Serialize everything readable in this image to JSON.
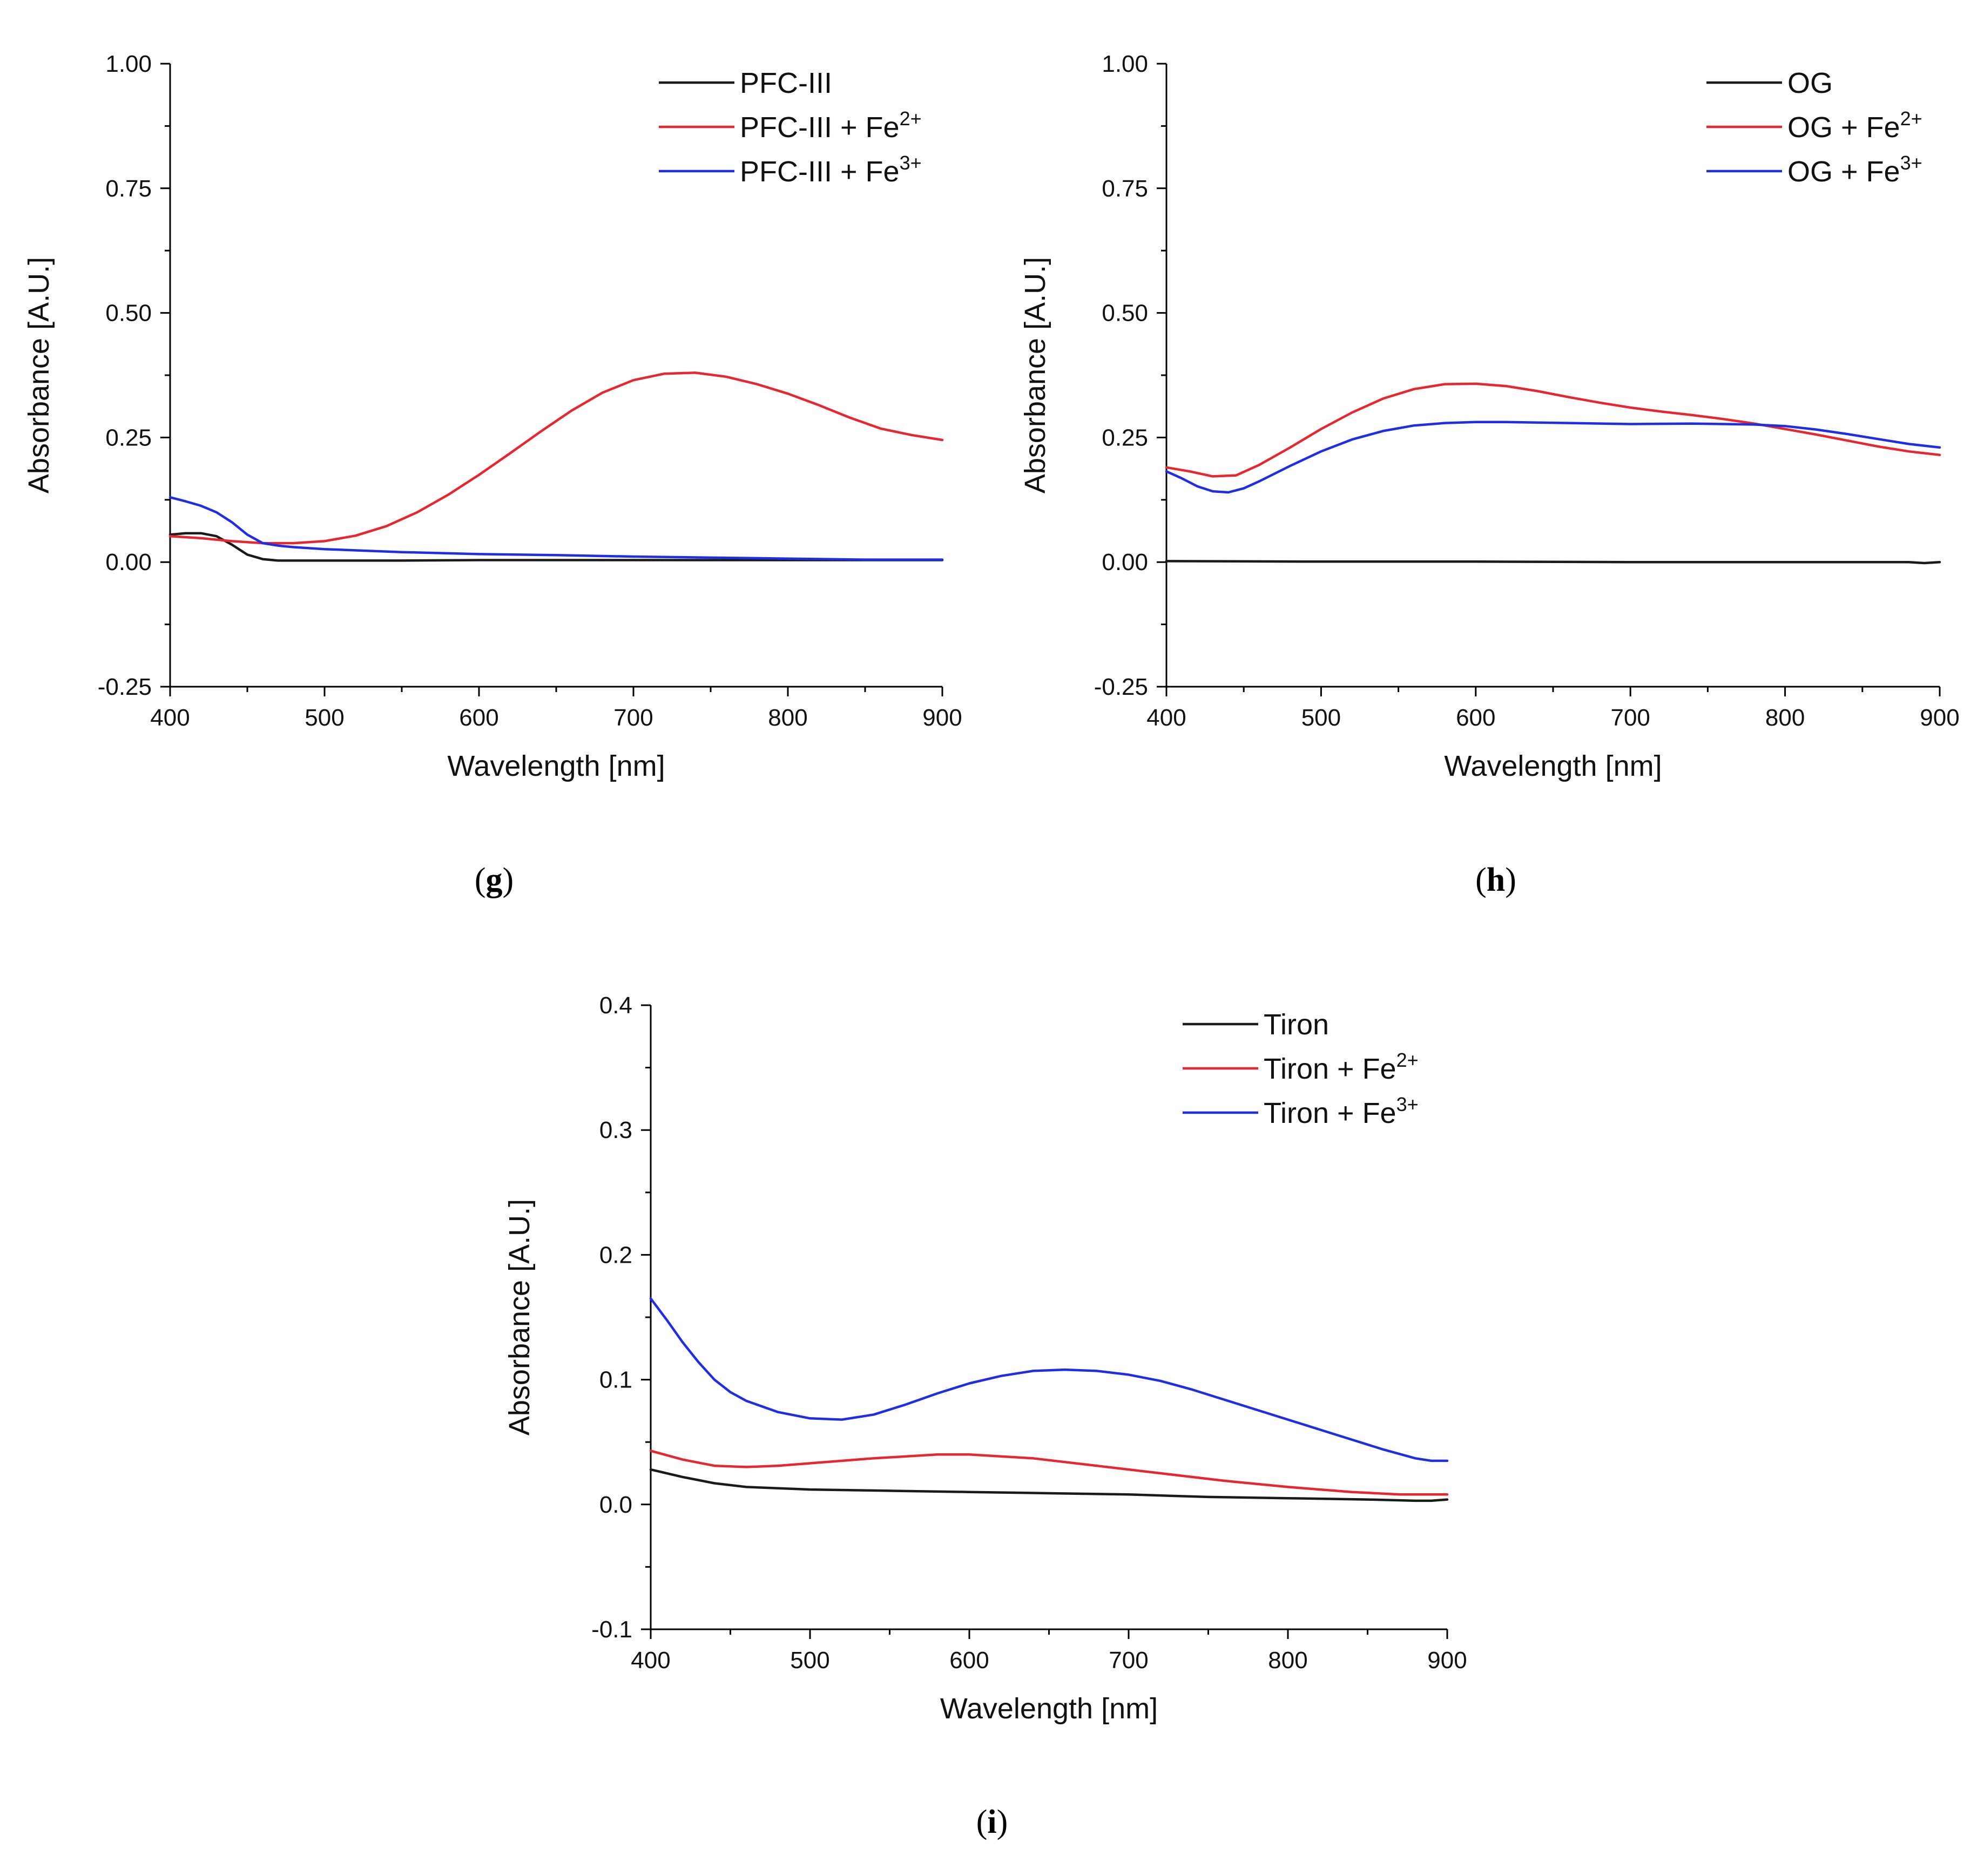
{
  "figure": {
    "panels": [
      {
        "label_open": "(",
        "label_letter": "g",
        "label_close": ")"
      },
      {
        "label_open": "(",
        "label_letter": "h",
        "label_close": ")"
      },
      {
        "label_open": "(",
        "label_letter": "i",
        "label_close": ")"
      }
    ]
  },
  "chart_data": [
    {
      "type": "line",
      "panel": "g",
      "xlabel": "Wavelength [nm]",
      "ylabel": "Absorbance [A.U.]",
      "xlim": [
        400,
        900
      ],
      "ylim": [
        -0.25,
        1.0
      ],
      "xticks": [
        400,
        500,
        600,
        700,
        800,
        900
      ],
      "xtick_labels": [
        "400",
        "500",
        "600",
        "700",
        "800",
        "900"
      ],
      "yticks": [
        -0.25,
        0,
        0.25,
        0.5,
        0.75,
        1.0
      ],
      "ytick_labels": [
        "-0.25",
        "0.00",
        "0.25",
        "0.50",
        "0.75",
        "1.00"
      ],
      "grid": false,
      "legend_position": "top-right",
      "series": [
        {
          "name": "PFC-III",
          "label_base": "PFC-III",
          "label_sup": "",
          "color": "#1a1a1a",
          "x": [
            400,
            410,
            420,
            430,
            440,
            450,
            460,
            470,
            480,
            500,
            550,
            600,
            650,
            700,
            750,
            800,
            850,
            900
          ],
          "y": [
            0.055,
            0.058,
            0.058,
            0.052,
            0.035,
            0.015,
            0.006,
            0.003,
            0.003,
            0.003,
            0.003,
            0.004,
            0.004,
            0.004,
            0.004,
            0.004,
            0.004,
            0.004
          ]
        },
        {
          "name": "PFC-III + Fe2+",
          "label_base": "PFC-III + Fe",
          "label_sup": "2+",
          "color": "#e8262e",
          "x": [
            400,
            420,
            440,
            460,
            480,
            500,
            520,
            540,
            560,
            580,
            600,
            620,
            640,
            660,
            680,
            700,
            720,
            740,
            760,
            780,
            800,
            820,
            840,
            860,
            880,
            900
          ],
          "y": [
            0.052,
            0.048,
            0.042,
            0.038,
            0.038,
            0.042,
            0.053,
            0.072,
            0.1,
            0.135,
            0.175,
            0.218,
            0.262,
            0.304,
            0.34,
            0.365,
            0.378,
            0.38,
            0.372,
            0.357,
            0.338,
            0.315,
            0.29,
            0.268,
            0.255,
            0.245
          ]
        },
        {
          "name": "PFC-III + Fe3+",
          "label_base": "PFC-III + Fe",
          "label_sup": "3+",
          "color": "#1f2ee6",
          "x": [
            400,
            410,
            420,
            430,
            440,
            450,
            460,
            470,
            480,
            500,
            550,
            600,
            650,
            700,
            750,
            800,
            850,
            900
          ],
          "y": [
            0.13,
            0.122,
            0.113,
            0.1,
            0.08,
            0.055,
            0.038,
            0.033,
            0.03,
            0.026,
            0.02,
            0.016,
            0.014,
            0.011,
            0.009,
            0.007,
            0.005,
            0.005
          ]
        }
      ]
    },
    {
      "type": "line",
      "panel": "h",
      "xlabel": "Wavelength [nm]",
      "ylabel": "Absorbance [A.U.]",
      "xlim": [
        400,
        900
      ],
      "ylim": [
        -0.25,
        1.0
      ],
      "xticks": [
        400,
        500,
        600,
        700,
        800,
        900
      ],
      "xtick_labels": [
        "400",
        "500",
        "600",
        "700",
        "800",
        "900"
      ],
      "yticks": [
        -0.25,
        0,
        0.25,
        0.5,
        0.75,
        1.0
      ],
      "ytick_labels": [
        "-0.25",
        "0.00",
        "0.25",
        "0.50",
        "0.75",
        "1.00"
      ],
      "grid": false,
      "legend_position": "top-right",
      "series": [
        {
          "name": "OG",
          "label_base": "OG",
          "label_sup": "",
          "color": "#1a1a1a",
          "x": [
            400,
            500,
            600,
            700,
            800,
            850,
            880,
            890,
            900
          ],
          "y": [
            0.002,
            0.001,
            0.001,
            0.0,
            0.0,
            0.0,
            0.0,
            -0.002,
            0.0
          ]
        },
        {
          "name": "OG + Fe2+",
          "label_base": "OG + Fe",
          "label_sup": "2+",
          "color": "#e8262e",
          "x": [
            400,
            415,
            430,
            445,
            460,
            480,
            500,
            520,
            540,
            560,
            580,
            600,
            620,
            640,
            660,
            680,
            700,
            720,
            740,
            760,
            780,
            800,
            820,
            840,
            860,
            880,
            900
          ],
          "y": [
            0.19,
            0.182,
            0.172,
            0.174,
            0.195,
            0.23,
            0.267,
            0.3,
            0.328,
            0.347,
            0.357,
            0.358,
            0.353,
            0.343,
            0.331,
            0.32,
            0.31,
            0.302,
            0.295,
            0.287,
            0.278,
            0.267,
            0.256,
            0.244,
            0.232,
            0.222,
            0.215
          ]
        },
        {
          "name": "OG + Fe3+",
          "label_base": "OG + Fe",
          "label_sup": "3+",
          "color": "#1f2ee6",
          "x": [
            400,
            410,
            420,
            430,
            440,
            450,
            460,
            480,
            500,
            520,
            540,
            560,
            580,
            600,
            620,
            660,
            700,
            740,
            780,
            800,
            820,
            840,
            860,
            880,
            900
          ],
          "y": [
            0.182,
            0.168,
            0.152,
            0.142,
            0.14,
            0.148,
            0.162,
            0.193,
            0.222,
            0.246,
            0.263,
            0.274,
            0.279,
            0.281,
            0.281,
            0.279,
            0.277,
            0.278,
            0.276,
            0.273,
            0.266,
            0.257,
            0.247,
            0.237,
            0.23
          ]
        }
      ]
    },
    {
      "type": "line",
      "panel": "i",
      "xlabel": "Wavelength [nm]",
      "ylabel": "Absorbance [A.U.]",
      "xlim": [
        400,
        900
      ],
      "ylim": [
        -0.1,
        0.4
      ],
      "xticks": [
        400,
        500,
        600,
        700,
        800,
        900
      ],
      "xtick_labels": [
        "400",
        "500",
        "600",
        "700",
        "800",
        "900"
      ],
      "yticks": [
        -0.1,
        0,
        0.1,
        0.2,
        0.3,
        0.4
      ],
      "ytick_labels": [
        "-0.1",
        "0.0",
        "0.1",
        "0.2",
        "0.3",
        "0.4"
      ],
      "grid": false,
      "legend_position": "top-right",
      "series": [
        {
          "name": "Tiron",
          "label_base": "Tiron",
          "label_sup": "",
          "color": "#1a1a1a",
          "x": [
            400,
            420,
            440,
            460,
            480,
            500,
            550,
            600,
            650,
            700,
            750,
            800,
            850,
            880,
            890,
            900
          ],
          "y": [
            0.028,
            0.022,
            0.017,
            0.014,
            0.013,
            0.012,
            0.011,
            0.01,
            0.009,
            0.008,
            0.006,
            0.005,
            0.004,
            0.003,
            0.003,
            0.004
          ]
        },
        {
          "name": "Tiron + Fe2+",
          "label_base": "Tiron + Fe",
          "label_sup": "2+",
          "color": "#e8262e",
          "x": [
            400,
            420,
            440,
            460,
            480,
            500,
            540,
            580,
            600,
            640,
            680,
            720,
            760,
            800,
            840,
            870,
            900
          ],
          "y": [
            0.043,
            0.036,
            0.031,
            0.03,
            0.031,
            0.033,
            0.037,
            0.04,
            0.04,
            0.037,
            0.031,
            0.025,
            0.019,
            0.014,
            0.01,
            0.008,
            0.008
          ]
        },
        {
          "name": "Tiron + Fe3+",
          "label_base": "Tiron + Fe",
          "label_sup": "3+",
          "color": "#1f2ee6",
          "x": [
            400,
            410,
            420,
            430,
            440,
            450,
            460,
            480,
            500,
            520,
            540,
            560,
            580,
            600,
            620,
            640,
            660,
            680,
            700,
            720,
            740,
            760,
            780,
            800,
            820,
            840,
            860,
            880,
            890,
            900
          ],
          "y": [
            0.165,
            0.148,
            0.13,
            0.114,
            0.1,
            0.09,
            0.083,
            0.074,
            0.069,
            0.068,
            0.072,
            0.08,
            0.089,
            0.097,
            0.103,
            0.107,
            0.108,
            0.107,
            0.104,
            0.099,
            0.092,
            0.084,
            0.076,
            0.068,
            0.06,
            0.052,
            0.044,
            0.037,
            0.035,
            0.035
          ]
        }
      ]
    }
  ]
}
